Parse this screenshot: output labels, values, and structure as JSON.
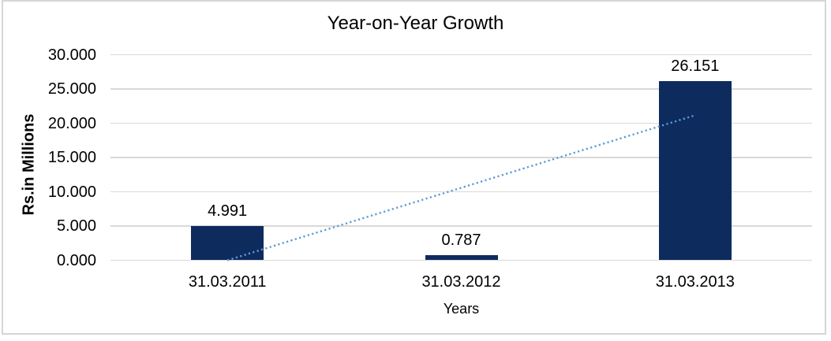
{
  "chart_data": {
    "type": "bar",
    "title": "Year-on-Year Growth",
    "xlabel": "Years",
    "ylabel": "Rs.in Millions",
    "categories": [
      "31.03.2011",
      "31.03.2012",
      "31.03.2013"
    ],
    "values": [
      4.991,
      0.787,
      26.151
    ],
    "data_labels": [
      "4.991",
      "0.787",
      "26.151"
    ],
    "ylim": [
      0,
      30
    ],
    "ytick_labels": [
      "0.000",
      "5.000",
      "10.000",
      "15.000",
      "20.000",
      "25.000",
      "30.000"
    ],
    "grid": true,
    "legend": "none",
    "trendline": {
      "type": "linear",
      "style": "dotted",
      "start_value": 0.06,
      "end_value": 21.22
    },
    "colors": {
      "bar": "#0e2b5e",
      "trendline": "#5b9bd5",
      "gridline": "#d9d9d9",
      "frame_border": "#d6d6d6",
      "text": "#000000"
    }
  }
}
